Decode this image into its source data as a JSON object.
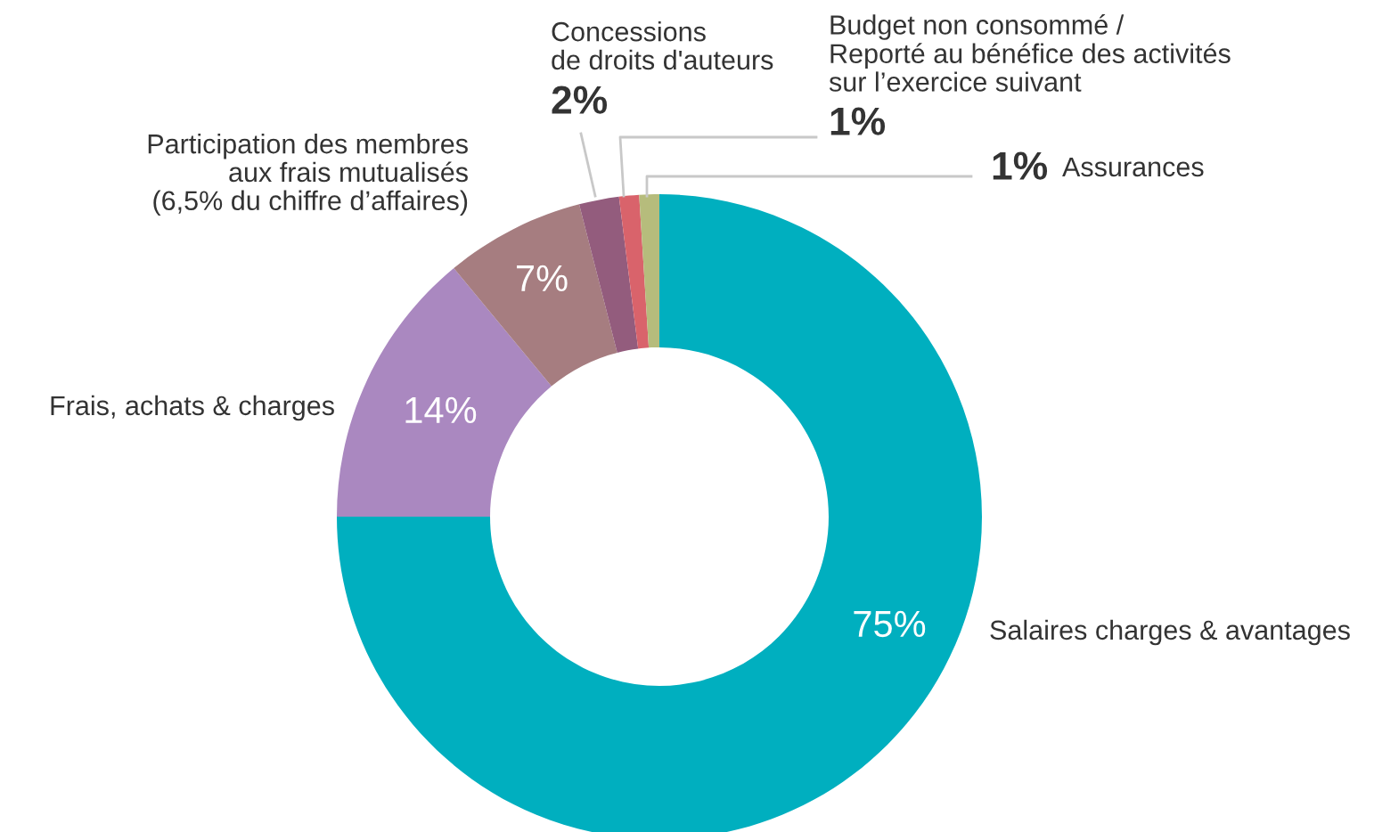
{
  "chart_data": {
    "type": "donut",
    "categories": [
      "Salaires charges & avantages",
      "Frais, achats & charges",
      "Participation des membres\naux frais mutualisés\n(6,5% du chiffre d’affaires)",
      "Concessions\nde droits d'auteurs",
      "Budget non consommé /\nReporté au bénéfice des activités\nsur l’exercice suivant",
      "Assurances"
    ],
    "values": [
      75,
      14,
      7,
      2,
      1,
      1
    ],
    "colors": [
      "#00afbf",
      "#aa88c0",
      "#a67d80",
      "#935c7d",
      "#d9636b",
      "#b6bc7c"
    ],
    "value_labels": [
      "75%",
      "14%",
      "7%",
      "2%",
      "1%",
      "1%"
    ],
    "legend": false
  }
}
